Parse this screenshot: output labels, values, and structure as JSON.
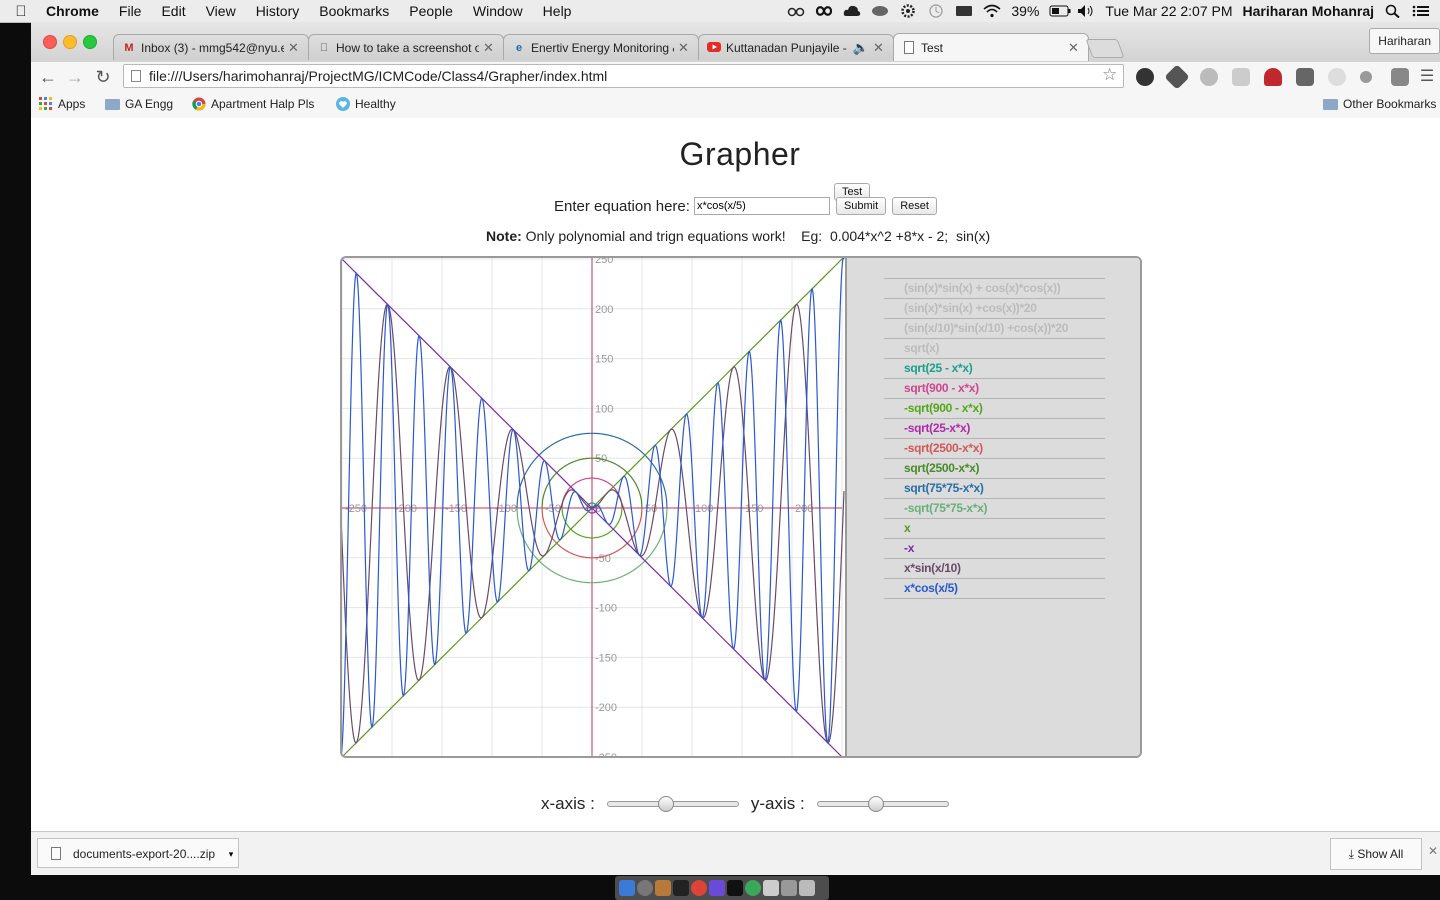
{
  "menubar": {
    "app_name": "Chrome",
    "items": [
      "File",
      "Edit",
      "View",
      "History",
      "Bookmarks",
      "People",
      "Window",
      "Help"
    ],
    "battery": "39%",
    "datetime": "Tue Mar 22  2:07 PM",
    "user": "Hariharan Mohanraj"
  },
  "browser": {
    "tabs": [
      {
        "title": "Inbox (3) - mmg542@nyu.e",
        "favicon": "gmail-icon",
        "color": "#c5281c"
      },
      {
        "title": "How to take a screenshot o",
        "favicon": "apple-icon",
        "color": "#555555"
      },
      {
        "title": "Enertiv Energy Monitoring &",
        "favicon": "enertiv-icon",
        "color": "#1f6fb2"
      },
      {
        "title": "Kuttanadan Punjayile - |",
        "favicon": "youtube-icon",
        "color": "#e52d27"
      },
      {
        "title": "Test",
        "favicon": "page-icon",
        "color": "#777777"
      }
    ],
    "profile_name": "Hariharan",
    "url": "file:///Users/harimohanraj/ProjectMG/ICMCode/Class4/Grapher/index.html",
    "bookmarks": [
      {
        "label": "Apps",
        "icon": "apps-grid-icon"
      },
      {
        "label": "GA Engg",
        "icon": "folder-icon"
      },
      {
        "label": "Apartment Halp Pls",
        "icon": "chrome-icon"
      },
      {
        "label": "Healthy",
        "icon": "heart-icon"
      }
    ],
    "other_bookmarks": "Other Bookmarks"
  },
  "page": {
    "title": "Grapher",
    "equation_label": "Enter equation here:",
    "equation_value": "x*cos(x/5)",
    "submit_label": "Submit",
    "reset_label": "Reset",
    "test_label": "Test",
    "note_bold": "Note:",
    "note_text": " Only polynomial and trign equations work!    Eg:  0.004*x^2 +8*x - 2;  sin(x)",
    "x_axis_label": "x-axis :",
    "y_axis_label": "y-axis :",
    "x_slider_value": 0.45,
    "y_slider_value": 0.45
  },
  "chart_data": {
    "type": "line",
    "xlim": [
      -250,
      250
    ],
    "ylim": [
      -250,
      250
    ],
    "grid": true,
    "x_ticks": [
      -250,
      -200,
      -150,
      -100,
      -50,
      0,
      50,
      100,
      150,
      200
    ],
    "y_ticks": [
      250,
      200,
      150,
      100,
      50,
      -50,
      -100,
      -150,
      -200,
      -250
    ],
    "series": [
      {
        "name": "(sin(x)*sin(x) + cos(x)*cos(x))",
        "color": "#bcbcbc"
      },
      {
        "name": "(sin(x)*sin(x) +cos(x))*20",
        "color": "#bcbcbc"
      },
      {
        "name": "(sin(x/10)*sin(x/10) +cos(x))*20",
        "color": "#bcbcbc"
      },
      {
        "name": "sqrt(x)",
        "color": "#bcbcbc"
      },
      {
        "name": "sqrt(25 - x*x)",
        "color": "#1aa08a"
      },
      {
        "name": "sqrt(900 - x*x)",
        "color": "#d0468f"
      },
      {
        "name": "-sqrt(900 - x*x)",
        "color": "#52a818"
      },
      {
        "name": "-sqrt(25-x*x)",
        "color": "#b02aa8"
      },
      {
        "name": "-sqrt(2500-x*x)",
        "color": "#cf5858"
      },
      {
        "name": "sqrt(2500-x*x)",
        "color": "#4a8a2a"
      },
      {
        "name": "sqrt(75*75-x*x)",
        "color": "#2a6ea8"
      },
      {
        "name": "-sqrt(75*75-x*x)",
        "color": "#6ab07a"
      },
      {
        "name": "x",
        "color": "#5a9a1e"
      },
      {
        "name": "-x",
        "color": "#7a2aa8"
      },
      {
        "name": "x*sin(x/10)",
        "color": "#6a4a6a"
      },
      {
        "name": "x*cos(x/5)",
        "color": "#2a58d0"
      }
    ]
  },
  "download": {
    "filename": "documents-export-20....zip",
    "show_all": "Show All"
  }
}
